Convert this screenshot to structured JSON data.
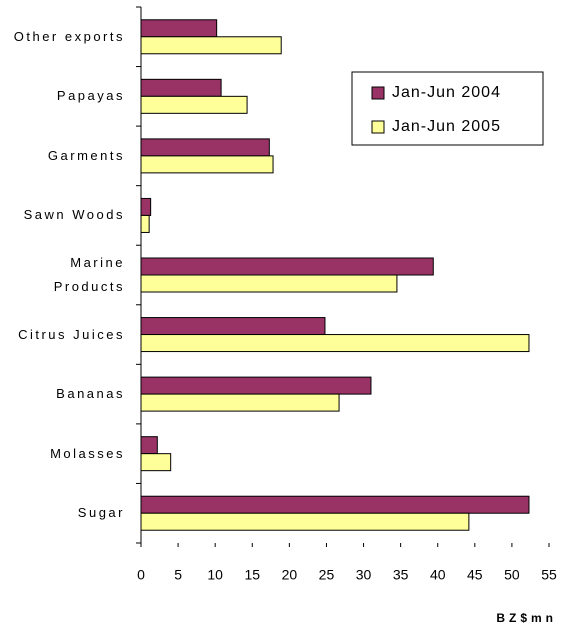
{
  "chart_data": {
    "type": "hbar",
    "categories": [
      "Other exports",
      "Papayas",
      "Garments",
      "Sawn Woods",
      "Marine\nProducts",
      "Citrus Juices",
      "Bananas",
      "Molasses",
      "Sugar"
    ],
    "series": [
      {
        "name": "Jan-Jun 2004",
        "color": "#993366",
        "values": [
          10.2,
          10.8,
          17.3,
          1.3,
          39.4,
          24.8,
          31.0,
          2.2,
          52.3
        ]
      },
      {
        "name": "Jan-Jun 2005",
        "color": "#ffff99",
        "values": [
          18.9,
          14.3,
          17.8,
          1.1,
          34.5,
          52.3,
          26.7,
          4.0,
          44.2
        ]
      }
    ],
    "xlabel": "BZ$mn",
    "xlim": [
      0,
      55
    ],
    "xticks": [
      0,
      5,
      10,
      15,
      20,
      25,
      30,
      35,
      40,
      45,
      50,
      55
    ],
    "legend": "upper right",
    "grid": false
  }
}
